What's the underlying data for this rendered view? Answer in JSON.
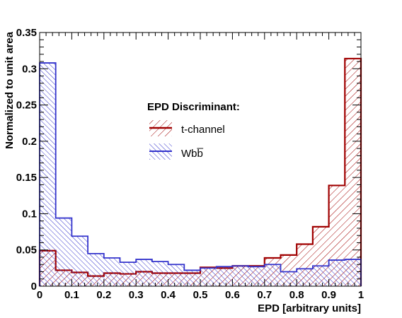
{
  "chart_data": {
    "type": "step-histogram",
    "xlabel": "EPD [arbitrary units]",
    "ylabel": "Normalized to unit area",
    "xlim": [
      0,
      1
    ],
    "ylim": [
      0,
      0.35
    ],
    "x_ticks": [
      "0",
      "0.1",
      "0.2",
      "0.3",
      "0.4",
      "0.5",
      "0.6",
      "0.7",
      "0.8",
      "0.9",
      "1"
    ],
    "y_ticks": [
      "0",
      "0.05",
      "0.1",
      "0.15",
      "0.2",
      "0.25",
      "0.3",
      "0.35"
    ],
    "bin_edges": [
      0,
      0.05,
      0.1,
      0.15,
      0.2,
      0.25,
      0.3,
      0.35,
      0.4,
      0.45,
      0.5,
      0.55,
      0.6,
      0.65,
      0.7,
      0.75,
      0.8,
      0.85,
      0.9,
      0.95,
      1.0
    ],
    "legend": {
      "title": "EPD Discriminant:",
      "placement": "center"
    },
    "series": [
      {
        "name": "t-channel",
        "color": "#a00000",
        "hatch": "diagonal-up",
        "values": [
          0.049,
          0.022,
          0.019,
          0.014,
          0.018,
          0.017,
          0.02,
          0.018,
          0.018,
          0.018,
          0.026,
          0.025,
          0.028,
          0.028,
          0.039,
          0.043,
          0.058,
          0.082,
          0.139,
          0.314
        ]
      },
      {
        "name": "Wbb̅",
        "color": "#3333cc",
        "hatch": "diagonal-down",
        "values": [
          0.308,
          0.094,
          0.069,
          0.045,
          0.039,
          0.033,
          0.037,
          0.034,
          0.03,
          0.022,
          0.025,
          0.027,
          0.028,
          0.027,
          0.03,
          0.02,
          0.024,
          0.028,
          0.036,
          0.037
        ]
      }
    ]
  }
}
